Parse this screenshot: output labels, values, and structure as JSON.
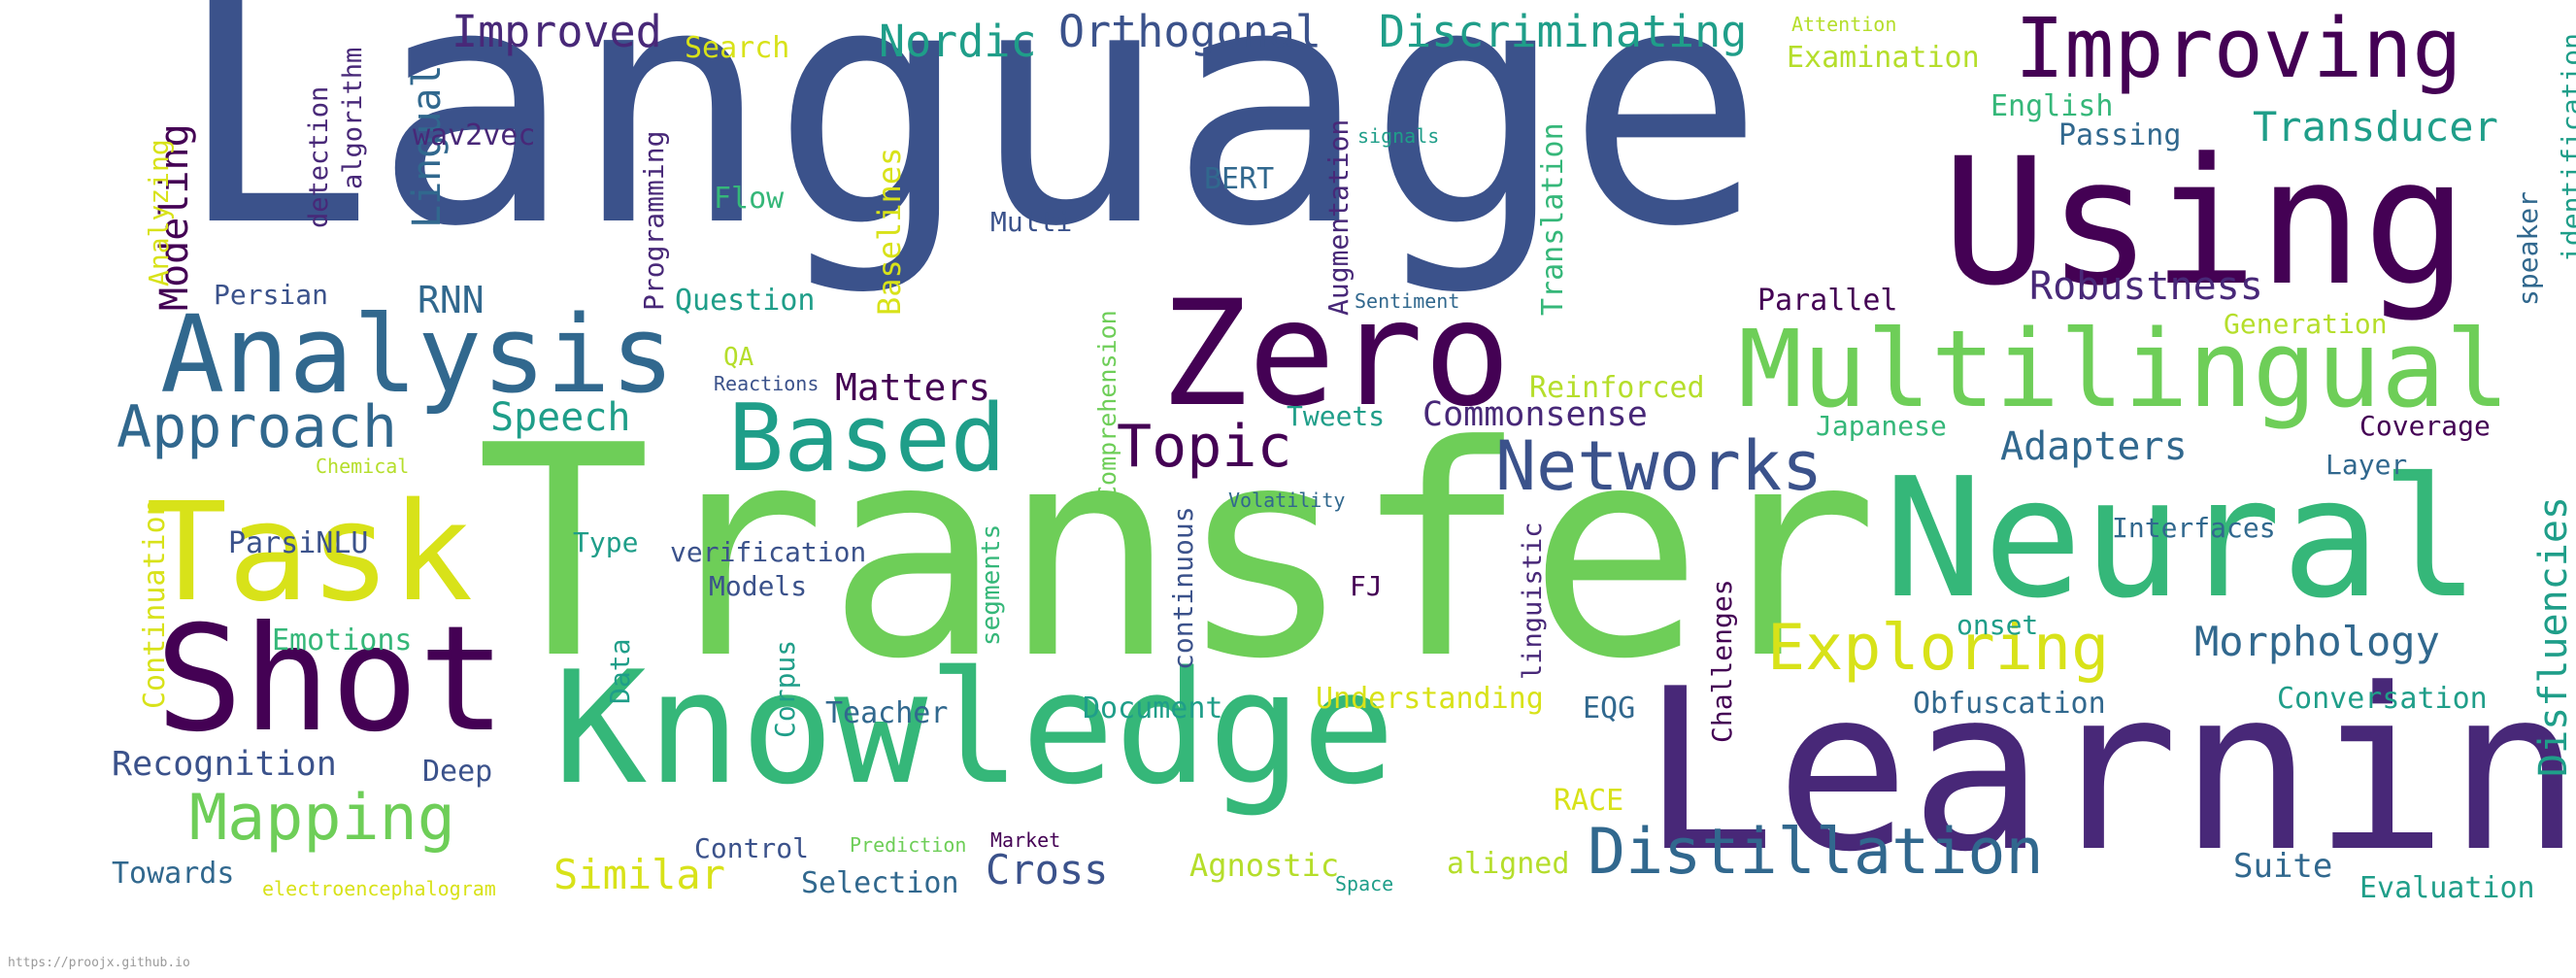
{
  "footer_url": "https://proojx.github.io",
  "palette": {
    "indigo": "#440154",
    "purple": "#482878",
    "blue": "#3b528b",
    "steel": "#31688e",
    "teal": "#26828e",
    "sea": "#1f9e89",
    "green": "#35b779",
    "lime": "#6ece58",
    "yellowgreen": "#b5de2b",
    "yellow": "#d8e219"
  },
  "words": [
    {
      "text": "Language",
      "color": "blue"
    },
    {
      "text": "Transfer",
      "color": "lime"
    },
    {
      "text": "Learning",
      "color": "purple"
    },
    {
      "text": "Using",
      "color": "indigo"
    },
    {
      "text": "Knowledge",
      "color": "green"
    },
    {
      "text": "Neural",
      "color": "green"
    },
    {
      "text": "Zero",
      "color": "indigo"
    },
    {
      "text": "Shot",
      "color": "indigo"
    },
    {
      "text": "Task",
      "color": "yellow"
    },
    {
      "text": "Analysis",
      "color": "steel"
    },
    {
      "text": "Multilingual",
      "color": "lime"
    },
    {
      "text": "Based",
      "color": "sea"
    },
    {
      "text": "Improving",
      "color": "indigo"
    },
    {
      "text": "Distillation",
      "color": "steel"
    },
    {
      "text": "Networks",
      "color": "blue"
    },
    {
      "text": "Exploring",
      "color": "yellow"
    },
    {
      "text": "Mapping",
      "color": "lime"
    },
    {
      "text": "Approach",
      "color": "steel"
    },
    {
      "text": "Topic",
      "color": "indigo"
    },
    {
      "text": "Morphology",
      "color": "steel"
    },
    {
      "text": "Disfluencies",
      "color": "sea"
    },
    {
      "text": "Transducer",
      "color": "sea"
    },
    {
      "text": "Robustness",
      "color": "purple"
    },
    {
      "text": "Discriminating",
      "color": "sea"
    },
    {
      "text": "Orthogonal",
      "color": "blue"
    },
    {
      "text": "Nordic",
      "color": "sea"
    },
    {
      "text": "Improved",
      "color": "purple"
    },
    {
      "text": "Adapters",
      "color": "steel"
    },
    {
      "text": "Matters",
      "color": "indigo"
    },
    {
      "text": "Speech",
      "color": "sea"
    },
    {
      "text": "Cross",
      "color": "blue"
    },
    {
      "text": "Similar",
      "color": "yellow"
    },
    {
      "text": "Recognition",
      "color": "blue"
    },
    {
      "text": "Modeling",
      "color": "indigo"
    },
    {
      "text": "Lingual",
      "color": "steel"
    },
    {
      "text": "Commonsense",
      "color": "purple"
    },
    {
      "text": "RNN",
      "color": "steel"
    },
    {
      "text": "Baselines",
      "color": "yellow"
    },
    {
      "text": "Translation",
      "color": "green"
    },
    {
      "text": "Augmentation",
      "color": "purple"
    },
    {
      "text": "Programming",
      "color": "purple"
    },
    {
      "text": "Understanding",
      "color": "yellow"
    },
    {
      "text": "Reinforced",
      "color": "yellowgreen"
    },
    {
      "text": "Agnostic",
      "color": "yellowgreen"
    },
    {
      "text": "Suite",
      "color": "steel"
    },
    {
      "text": "Conversation",
      "color": "sea"
    },
    {
      "text": "Evaluation",
      "color": "sea"
    },
    {
      "text": "Obfuscation",
      "color": "steel"
    },
    {
      "text": "Document",
      "color": "sea"
    },
    {
      "text": "Teacher",
      "color": "steel"
    },
    {
      "text": "Selection",
      "color": "steel"
    },
    {
      "text": "Control",
      "color": "blue"
    },
    {
      "text": "Towards",
      "color": "steel"
    },
    {
      "text": "Deep",
      "color": "blue"
    },
    {
      "text": "Emotions",
      "color": "green"
    },
    {
      "text": "Continuation",
      "color": "yellow"
    },
    {
      "text": "Analyzing",
      "color": "yellow"
    },
    {
      "text": "ParsiNLU",
      "color": "blue"
    },
    {
      "text": "Persian",
      "color": "blue"
    },
    {
      "text": "Question",
      "color": "sea"
    },
    {
      "text": "Flow",
      "color": "green"
    },
    {
      "text": "Search",
      "color": "yellow"
    },
    {
      "text": "wav2vec",
      "color": "purple"
    },
    {
      "text": "algorithm",
      "color": "purple"
    },
    {
      "text": "detection",
      "color": "purple"
    },
    {
      "text": "BERT",
      "color": "steel"
    },
    {
      "text": "Multi",
      "color": "blue"
    },
    {
      "text": "Comprehension",
      "color": "lime"
    },
    {
      "text": "Tweets",
      "color": "sea"
    },
    {
      "text": "QA",
      "color": "yellowgreen"
    },
    {
      "text": "Reactions",
      "color": "blue"
    },
    {
      "text": "verification",
      "color": "blue"
    },
    {
      "text": "Type",
      "color": "sea"
    },
    {
      "text": "Models",
      "color": "blue"
    },
    {
      "text": "segments",
      "color": "green"
    },
    {
      "text": "continuous",
      "color": "blue"
    },
    {
      "text": "Data",
      "color": "sea"
    },
    {
      "text": "Corpus",
      "color": "sea"
    },
    {
      "text": "FJ",
      "color": "indigo"
    },
    {
      "text": "linguistic",
      "color": "purple"
    },
    {
      "text": "Challenges",
      "color": "indigo"
    },
    {
      "text": "EQG",
      "color": "steel"
    },
    {
      "text": "RACE",
      "color": "yellow"
    },
    {
      "text": "aligned",
      "color": "yellowgreen"
    },
    {
      "text": "Space",
      "color": "sea"
    },
    {
      "text": "Market",
      "color": "indigo"
    },
    {
      "text": "Prediction",
      "color": "lime"
    },
    {
      "text": "electroencephalogram",
      "color": "yellow"
    },
    {
      "text": "Chemical",
      "color": "yellowgreen"
    },
    {
      "text": "Volatility",
      "color": "steel"
    },
    {
      "text": "Parallel",
      "color": "indigo"
    },
    {
      "text": "Generation",
      "color": "yellowgreen"
    },
    {
      "text": "Japanese",
      "color": "green"
    },
    {
      "text": "Coverage",
      "color": "indigo"
    },
    {
      "text": "Interfaces",
      "color": "steel"
    },
    {
      "text": "Layer",
      "color": "steel"
    },
    {
      "text": "onset",
      "color": "sea"
    },
    {
      "text": "Passing",
      "color": "steel"
    },
    {
      "text": "English",
      "color": "green"
    },
    {
      "text": "Examination",
      "color": "yellowgreen"
    },
    {
      "text": "Attention",
      "color": "yellowgreen"
    },
    {
      "text": "speaker",
      "color": "steel"
    },
    {
      "text": "identification",
      "color": "sea"
    },
    {
      "text": "Sentiment",
      "color": "steel"
    },
    {
      "text": "signals",
      "color": "sea"
    }
  ]
}
